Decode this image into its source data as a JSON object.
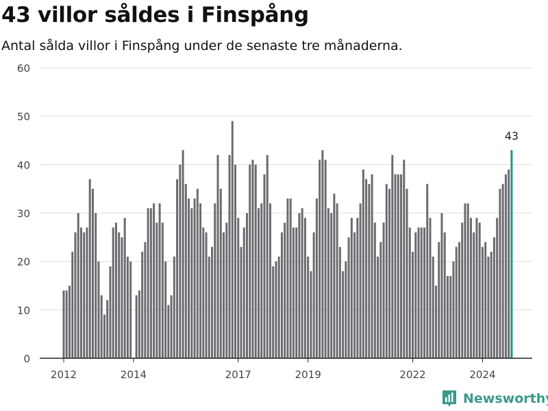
{
  "header": {
    "title": "43 villor såldes i Finspång",
    "subtitle": "Antal sålda villor i Finspång under de senaste tre månaderna."
  },
  "brand": {
    "name": "Newsworthy",
    "color": "#3a9a8a"
  },
  "chart_data": {
    "type": "bar",
    "title": "43 villor såldes i Finspång",
    "subtitle": "Antal sålda villor i Finspång under de senaste tre månaderna.",
    "x_start": "2012-01",
    "x_interval": "month",
    "values": [
      14,
      14,
      15,
      22,
      26,
      30,
      27,
      26,
      27,
      37,
      35,
      30,
      20,
      13,
      9,
      12,
      19,
      27,
      28,
      26,
      25,
      29,
      21,
      20,
      null,
      13,
      14,
      22,
      24,
      31,
      31,
      32,
      28,
      32,
      28,
      20,
      11,
      13,
      21,
      37,
      40,
      43,
      36,
      33,
      31,
      33,
      35,
      32,
      27,
      26,
      21,
      23,
      32,
      42,
      35,
      26,
      28,
      42,
      49,
      40,
      29,
      23,
      27,
      30,
      40,
      41,
      40,
      31,
      32,
      38,
      42,
      32,
      19,
      20,
      21,
      26,
      28,
      33,
      33,
      27,
      27,
      30,
      31,
      29,
      21,
      18,
      26,
      33,
      41,
      43,
      41,
      31,
      30,
      34,
      32,
      23,
      18,
      20,
      25,
      29,
      26,
      29,
      32,
      39,
      37,
      36,
      38,
      28,
      21,
      24,
      28,
      36,
      35,
      42,
      38,
      38,
      38,
      41,
      35,
      27,
      22,
      26,
      27,
      27,
      27,
      36,
      29,
      21,
      15,
      24,
      30,
      26,
      17,
      17,
      20,
      23,
      24,
      28,
      32,
      32,
      29,
      26,
      29,
      28,
      23,
      24,
      21,
      22,
      25,
      29,
      35,
      36,
      38,
      39,
      43
    ],
    "highlight": {
      "index": 154,
      "value": 43,
      "label": "43",
      "color": "#21958c"
    },
    "bar_color": "#6b6a6f",
    "ylim": [
      0,
      60
    ],
    "yticks": [
      0,
      10,
      20,
      30,
      40,
      50,
      60
    ],
    "xticks": [
      {
        "index": 0,
        "label": "2012"
      },
      {
        "index": 24,
        "label": "2014"
      },
      {
        "index": 60,
        "label": "2017"
      },
      {
        "index": 84,
        "label": "2019"
      },
      {
        "index": 120,
        "label": "2022"
      },
      {
        "index": 144,
        "label": "2024"
      }
    ],
    "grid": true,
    "xlabel": "",
    "ylabel": ""
  }
}
